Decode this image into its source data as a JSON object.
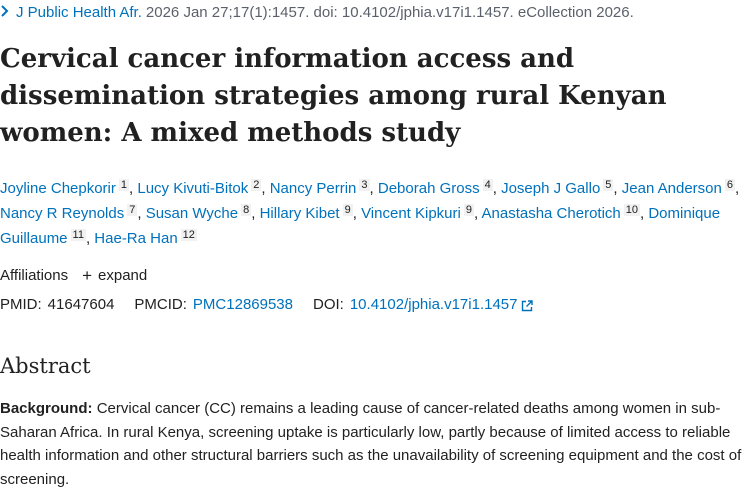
{
  "citation": {
    "journal": "J Public Health Afr.",
    "details": "2026 Jan 27;17(1):1457. doi: 10.4102/jphia.v17i1.1457. eCollection 2026."
  },
  "title": "Cervical cancer information access and dissemination strategies among rural Kenyan women: A mixed methods study",
  "authors": [
    {
      "name": "Joyline Chepkorir",
      "aff": "1"
    },
    {
      "name": "Lucy Kivuti-Bitok",
      "aff": "2"
    },
    {
      "name": "Nancy Perrin",
      "aff": "3"
    },
    {
      "name": "Deborah Gross",
      "aff": "4"
    },
    {
      "name": "Joseph J Gallo",
      "aff": "5"
    },
    {
      "name": "Jean Anderson",
      "aff": "6"
    },
    {
      "name": "Nancy R Reynolds",
      "aff": "7"
    },
    {
      "name": "Susan Wyche",
      "aff": "8"
    },
    {
      "name": "Hillary Kibet",
      "aff": "9"
    },
    {
      "name": "Vincent Kipkuri",
      "aff": "9"
    },
    {
      "name": "Anastasha Cherotich",
      "aff": "10"
    },
    {
      "name": "Dominique Guillaume",
      "aff": "11"
    },
    {
      "name": "Hae-Ra Han",
      "aff": "12"
    }
  ],
  "affiliations": {
    "label": "Affiliations",
    "expand_label": "expand"
  },
  "ids": {
    "pmid_label": "PMID:",
    "pmid": "41647604",
    "pmcid_label": "PMCID:",
    "pmcid": "PMC12869538",
    "doi_label": "DOI:",
    "doi": "10.4102/jphia.v17i1.1457"
  },
  "abstract": {
    "heading": "Abstract",
    "background_label": "Background:",
    "background_text": "Cervical cancer (CC) remains a leading cause of cancer-related deaths among women in sub-Saharan Africa. In rural Kenya, screening uptake is particularly low, partly because of limited access to reliable health information and other structural barriers such as the unavailability of screening equipment and the cost of screening."
  },
  "colors": {
    "link": "#0071bc",
    "text": "#212121",
    "muted": "#5b616b"
  }
}
